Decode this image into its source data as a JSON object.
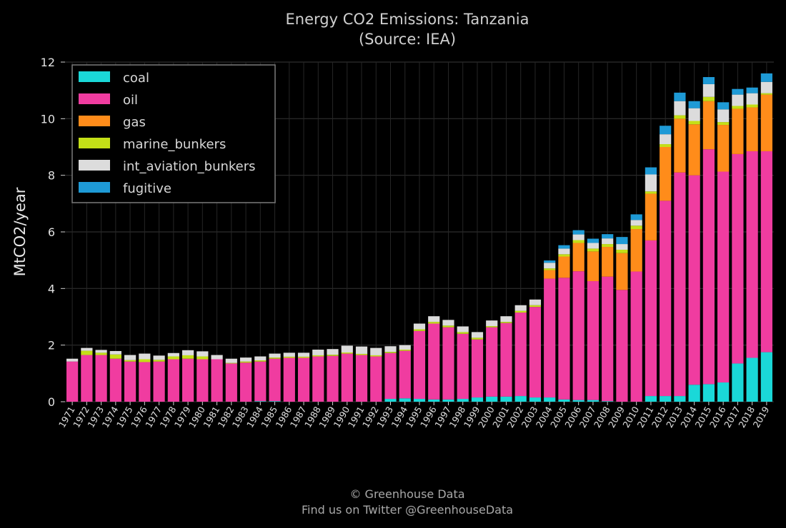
{
  "chart_data": {
    "type": "bar",
    "stacked": true,
    "title": "Energy CO2 Emissions: Tanzania",
    "subtitle": "(Source: IEA)",
    "xlabel": "",
    "ylabel": "MtCO2/year",
    "ylim": [
      0,
      12
    ],
    "yticks": [
      "0",
      "2",
      "4",
      "6",
      "8",
      "10",
      "12"
    ],
    "grid": true,
    "legend_position": "top-left",
    "categories": [
      "1971",
      "1972",
      "1973",
      "1974",
      "1975",
      "1976",
      "1977",
      "1978",
      "1979",
      "1980",
      "1981",
      "1982",
      "1983",
      "1984",
      "1985",
      "1986",
      "1987",
      "1988",
      "1989",
      "1990",
      "1991",
      "1992",
      "1993",
      "1994",
      "1995",
      "1996",
      "1997",
      "1998",
      "1999",
      "2000",
      "2001",
      "2002",
      "2003",
      "2004",
      "2005",
      "2006",
      "2007",
      "2008",
      "2009",
      "2010",
      "2011",
      "2012",
      "2013",
      "2014",
      "2015",
      "2016",
      "2017",
      "2018",
      "2019"
    ],
    "series": [
      {
        "name": "coal",
        "color": "#1ad8d8",
        "values": [
          0,
          0,
          0,
          0,
          0,
          0,
          0,
          0,
          0,
          0,
          0,
          0,
          0,
          0.02,
          0.02,
          0,
          0,
          0,
          0,
          0,
          0,
          0,
          0.1,
          0.12,
          0.1,
          0.08,
          0.08,
          0.1,
          0.15,
          0.18,
          0.18,
          0.2,
          0.15,
          0.15,
          0.08,
          0.06,
          0.06,
          0.02,
          0,
          0,
          0.2,
          0.2,
          0.2,
          0.6,
          0.62,
          0.68,
          1.35,
          1.55,
          1.75
        ]
      },
      {
        "name": "oil",
        "color": "#f03ca0",
        "values": [
          1.42,
          1.65,
          1.65,
          1.52,
          1.42,
          1.4,
          1.42,
          1.5,
          1.52,
          1.5,
          1.5,
          1.35,
          1.38,
          1.4,
          1.5,
          1.55,
          1.55,
          1.6,
          1.62,
          1.7,
          1.65,
          1.6,
          1.62,
          1.68,
          2.4,
          2.68,
          2.55,
          2.3,
          2.05,
          2.45,
          2.6,
          2.95,
          3.2,
          4.2,
          4.3,
          4.55,
          4.2,
          4.4,
          3.95,
          4.6,
          5.5,
          6.9,
          7.9,
          7.4,
          8.3,
          7.45,
          7.4,
          7.3,
          7.1
        ]
      },
      {
        "name": "gas",
        "color": "#ff8c1a",
        "values": [
          0,
          0,
          0,
          0,
          0,
          0,
          0,
          0,
          0,
          0,
          0,
          0,
          0,
          0,
          0,
          0,
          0,
          0,
          0,
          0,
          0,
          0,
          0,
          0,
          0,
          0,
          0,
          0,
          0,
          0,
          0,
          0,
          0,
          0.3,
          0.75,
          1.0,
          1.05,
          1.05,
          1.3,
          1.5,
          1.65,
          1.9,
          1.9,
          1.8,
          1.7,
          1.65,
          1.6,
          1.55,
          2.0
        ]
      },
      {
        "name": "marine_bunkers",
        "color": "#c4e017",
        "values": [
          0,
          0.15,
          0.08,
          0.15,
          0.05,
          0.1,
          0.06,
          0.1,
          0.12,
          0.1,
          0,
          0.02,
          0.04,
          0.04,
          0.04,
          0.04,
          0.04,
          0.04,
          0.04,
          0.04,
          0.04,
          0.04,
          0.04,
          0.04,
          0.06,
          0.06,
          0.06,
          0.06,
          0.06,
          0.04,
          0.04,
          0.06,
          0.06,
          0.06,
          0.08,
          0.1,
          0.1,
          0.1,
          0.12,
          0.12,
          0.08,
          0.1,
          0.12,
          0.12,
          0.15,
          0.1,
          0.1,
          0.1,
          0.05
        ]
      },
      {
        "name": "int_aviation_bunkers",
        "color": "#dcdcdc",
        "values": [
          0.1,
          0.1,
          0.1,
          0.12,
          0.18,
          0.2,
          0.15,
          0.12,
          0.18,
          0.18,
          0.15,
          0.15,
          0.14,
          0.14,
          0.14,
          0.14,
          0.14,
          0.2,
          0.2,
          0.24,
          0.26,
          0.26,
          0.2,
          0.16,
          0.2,
          0.2,
          0.2,
          0.2,
          0.2,
          0.2,
          0.2,
          0.2,
          0.2,
          0.2,
          0.2,
          0.2,
          0.2,
          0.2,
          0.2,
          0.2,
          0.6,
          0.35,
          0.5,
          0.45,
          0.45,
          0.45,
          0.4,
          0.4,
          0.4
        ]
      },
      {
        "name": "fugitive",
        "color": "#1e9ad6",
        "values": [
          0,
          0,
          0,
          0,
          0,
          0,
          0,
          0,
          0,
          0,
          0,
          0,
          0,
          0,
          0,
          0,
          0,
          0,
          0,
          0,
          0,
          0,
          0,
          0,
          0,
          0,
          0,
          0,
          0,
          0,
          0,
          0,
          0,
          0.08,
          0.12,
          0.15,
          0.15,
          0.15,
          0.25,
          0.2,
          0.25,
          0.3,
          0.3,
          0.25,
          0.25,
          0.25,
          0.2,
          0.2,
          0.3
        ]
      }
    ]
  },
  "footer": {
    "line1": "© Greenhouse Data",
    "line2": "Find us on Twitter @GreenhouseData"
  }
}
